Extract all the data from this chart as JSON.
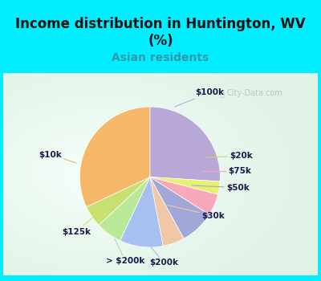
{
  "title": "Income distribution in Huntington, WV\n(%)",
  "subtitle": "Asian residents",
  "bg_cyan": "#00eeff",
  "chart_bg_gradient_left": "#c8e8d0",
  "chart_bg_gradient_right": "#e0f0f8",
  "labels": [
    "$100k",
    "$20k",
    "$75k",
    "$50k",
    "$30k",
    "$200k",
    "> $200k",
    "$125k",
    "$10k"
  ],
  "vals": [
    26,
    3,
    5,
    8,
    5,
    10,
    6,
    5,
    32
  ],
  "colors": [
    "#b8a8d8",
    "#e8f070",
    "#f8a8b8",
    "#a0a8d8",
    "#f0c8a8",
    "#a8c0f0",
    "#b8e898",
    "#c8e070",
    "#f4b868"
  ],
  "label_colors": [
    "#b8a8d8",
    "#c8d860",
    "#f8a8b8",
    "#a0a8d8",
    "#f0c8a8",
    "#a8c0f0",
    "#b8d890",
    "#c8e070",
    "#f4b868"
  ],
  "title_fontsize": 12,
  "subtitle_fontsize": 10,
  "watermark": "City-Data.com"
}
